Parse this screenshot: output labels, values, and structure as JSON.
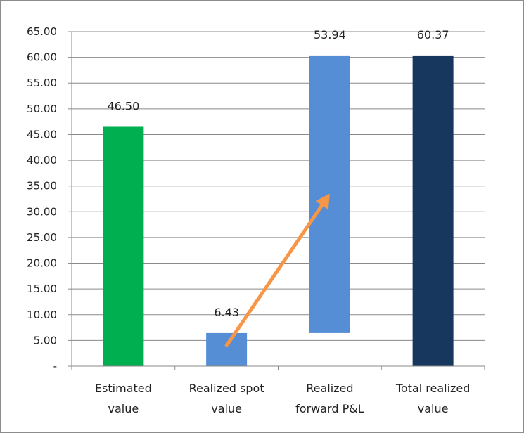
{
  "chart_data": {
    "type": "bar",
    "subtype": "waterfall",
    "title": "",
    "xlabel": "",
    "ylabel": "",
    "ylim": [
      0,
      65
    ],
    "ytick_step": 5,
    "ytick_labels": [
      "-",
      "5.00",
      "10.00",
      "15.00",
      "20.00",
      "25.00",
      "30.00",
      "35.00",
      "40.00",
      "45.00",
      "50.00",
      "55.00",
      "60.00",
      "65.00"
    ],
    "grid": true,
    "legend": "none",
    "categories": [
      {
        "lines": [
          "Estimated",
          "value"
        ]
      },
      {
        "lines": [
          "Realized spot",
          "value"
        ]
      },
      {
        "lines": [
          "Realized",
          "forward P&L"
        ]
      },
      {
        "lines": [
          "Total realized",
          "value"
        ]
      }
    ],
    "bars": [
      {
        "base": 0,
        "value": 46.5,
        "label": "46.50",
        "color": "#00b050"
      },
      {
        "base": 0,
        "value": 6.43,
        "label": "6.43",
        "color": "#558ed5"
      },
      {
        "base": 6.43,
        "value": 53.94,
        "label": "53.94",
        "color": "#558ed5"
      },
      {
        "base": 0,
        "value": 60.37,
        "label": "60.37",
        "color": "#17375e"
      }
    ],
    "annotations": [
      {
        "type": "arrow",
        "from": {
          "category": 1,
          "y": 4.0
        },
        "to": {
          "category": 2,
          "y": 33.5
        },
        "color": "#f79646"
      }
    ]
  }
}
